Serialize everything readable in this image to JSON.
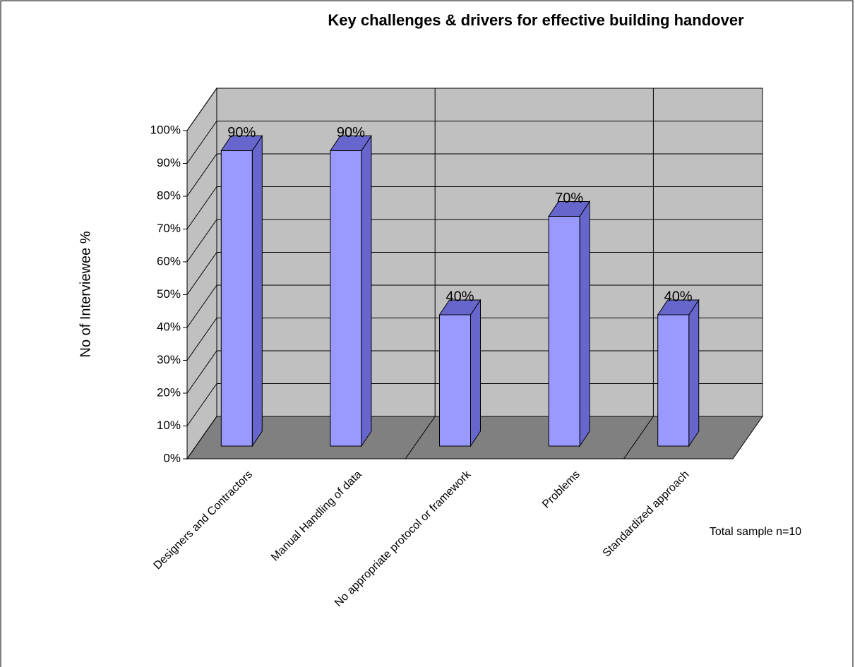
{
  "chart_data": {
    "type": "bar3d",
    "title": "Key challenges & drivers for effective building handover",
    "ylabel": "No of Interviewee %",
    "annotation": "Total sample n=10",
    "categories": [
      "Designers and Contractors",
      "Manual Handling of data",
      "No appropriate protocol or framework",
      "Problems",
      "Standardized approach"
    ],
    "values": [
      90,
      90,
      40,
      70,
      40
    ],
    "value_labels": [
      "90%",
      "90%",
      "40%",
      "70%",
      "40%"
    ],
    "color": "#9999ff",
    "ylim": [
      0,
      100
    ],
    "yticks": [
      {
        "value": 0,
        "label": "0%"
      },
      {
        "value": 10,
        "label": "10%"
      },
      {
        "value": 20,
        "label": "20%"
      },
      {
        "value": 30,
        "label": "30%"
      },
      {
        "value": 40,
        "label": "40%"
      },
      {
        "value": 50,
        "label": "50%"
      },
      {
        "value": 60,
        "label": "60%"
      },
      {
        "value": 70,
        "label": "70%"
      },
      {
        "value": 80,
        "label": "80%"
      },
      {
        "value": 90,
        "label": "90%"
      },
      {
        "value": 100,
        "label": "100%"
      }
    ],
    "grid": true
  }
}
